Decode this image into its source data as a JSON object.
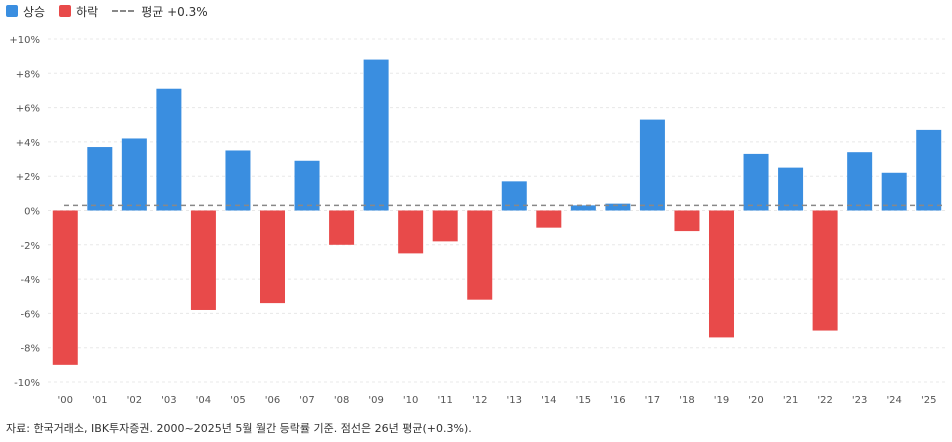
{
  "legend": {
    "up_label": "상승",
    "down_label": "하락",
    "avg_label": "평균 +0.3%"
  },
  "colors": {
    "up": "#3a8ee0",
    "down": "#e84a4a",
    "avg_line": "#888888",
    "grid": "#e8e8e8"
  },
  "footnote": "자료: 한국거래소, IBK투자증권. 2000~2025년 5월 월간 등락률 기준. 점선은 26년 평균(+0.3%).",
  "chart_data": {
    "type": "bar",
    "categories": [
      "'00",
      "'01",
      "'02",
      "'03",
      "'04",
      "'05",
      "'06",
      "'07",
      "'08",
      "'09",
      "'10",
      "'11",
      "'12",
      "'13",
      "'14",
      "'15",
      "'16",
      "'17",
      "'18",
      "'19",
      "'20",
      "'21",
      "'22",
      "'23",
      "'24",
      "'25"
    ],
    "values": [
      -9.0,
      3.7,
      4.2,
      7.1,
      -5.8,
      3.5,
      -5.4,
      2.9,
      -2.0,
      8.8,
      -2.5,
      -1.8,
      -5.2,
      1.7,
      -1.0,
      0.3,
      0.4,
      5.3,
      -1.2,
      -7.4,
      3.3,
      2.5,
      -7.0,
      3.4,
      2.2,
      4.7
    ],
    "ylim": [
      -10,
      10
    ],
    "yticks": [
      -10,
      -8,
      -6,
      -4,
      -2,
      0,
      2,
      4,
      6,
      8,
      10
    ],
    "ytick_labels": [
      "-10%",
      "-8%",
      "-6%",
      "-4%",
      "-2%",
      "0%",
      "+2%",
      "+4%",
      "+6%",
      "+8%",
      "+10%"
    ],
    "average": 0.3,
    "grid": true,
    "legend_position": "top-left"
  }
}
